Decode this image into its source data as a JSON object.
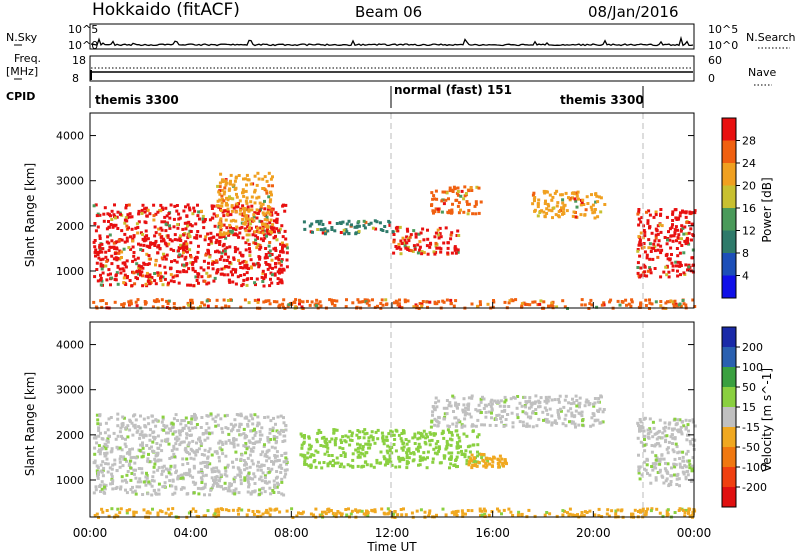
{
  "header": {
    "station": "Hokkaido (fitACF)",
    "beam": "Beam 06",
    "date": "08/Jan/2016"
  },
  "nsky_panel": {
    "left_label": "N.Sky",
    "right_label": "N.Search",
    "left_ticks": [
      "10^5",
      "10^0"
    ],
    "right_ticks": [
      "10^5",
      "10^0"
    ]
  },
  "freq_panel": {
    "left_label_line1": "Freq.",
    "left_label_line2": "[MHz]",
    "right_label": "Nave",
    "left_ticks": [
      "18",
      "8"
    ],
    "right_ticks": [
      "60",
      "0"
    ],
    "cpid_label": "CPID"
  },
  "cpid_modes": [
    "themis 3300",
    "normal (fast) 151",
    "themis 3300"
  ],
  "time_axis": {
    "label": "Time UT",
    "ticks": [
      "00:00",
      "04:00",
      "08:00",
      "12:00",
      "16:00",
      "20:00",
      "00:00"
    ]
  },
  "colors": {
    "power_scale": [
      "#1010e8",
      "#1c4fb8",
      "#2e7a6a",
      "#4a9a5a",
      "#c8c030",
      "#f0a020",
      "#f06010",
      "#e81010"
    ],
    "velocity_scale": [
      "#1a2aa8",
      "#2a60b0",
      "#3aa040",
      "#8ad040",
      "#c0c0c0",
      "#f0a820",
      "#f07810",
      "#f04010",
      "#e01010"
    ]
  },
  "chart_data": [
    {
      "type": "heatmap",
      "name": "power",
      "title": "",
      "xlabel": "Time UT",
      "ylabel": "Slant Range [km]",
      "xlim": [
        0,
        24
      ],
      "ylim": [
        180,
        4500
      ],
      "yticks": [
        1000,
        2000,
        3000,
        4000
      ],
      "colorbar": {
        "label": "Power [dB]",
        "ticks": [
          "4",
          "8",
          "12",
          "16",
          "20",
          "24",
          "28"
        ],
        "range": [
          0,
          32
        ]
      },
      "echo_regions": [
        {
          "time": [
            0.1,
            7.8
          ],
          "range": [
            700,
            2500
          ],
          "value": "28"
        },
        {
          "time": [
            5.0,
            7.2
          ],
          "range": [
            1800,
            3200
          ],
          "value": "20"
        },
        {
          "time": [
            8.3,
            12.0
          ],
          "range": [
            1850,
            2150
          ],
          "value": "8"
        },
        {
          "time": [
            12.0,
            14.7
          ],
          "range": [
            1400,
            2000
          ],
          "value": "28"
        },
        {
          "time": [
            13.5,
            15.5
          ],
          "range": [
            2300,
            2900
          ],
          "value": "24"
        },
        {
          "time": [
            17.5,
            20.4
          ],
          "range": [
            2200,
            2800
          ],
          "value": "20"
        },
        {
          "time": [
            21.7,
            24.0
          ],
          "range": [
            900,
            2400
          ],
          "value": "28"
        },
        {
          "time": [
            0.0,
            24.0
          ],
          "range": [
            200,
            400
          ],
          "value": "24"
        }
      ]
    },
    {
      "type": "heatmap",
      "name": "velocity",
      "title": "",
      "xlabel": "Time UT",
      "ylabel": "Slant Range [km]",
      "xlim": [
        0,
        24
      ],
      "ylim": [
        180,
        4500
      ],
      "yticks": [
        1000,
        2000,
        3000,
        4000
      ],
      "colorbar": {
        "label": "Velocity [m s^-1]",
        "ticks": [
          "200",
          "100",
          "50",
          "15",
          "-15",
          "-50",
          "-100",
          "-200"
        ],
        "range": [
          -250,
          250
        ]
      },
      "echo_regions": [
        {
          "time": [
            0.1,
            7.8
          ],
          "range": [
            700,
            2500
          ],
          "value": "-15 to 15"
        },
        {
          "time": [
            8.3,
            15.5
          ],
          "range": [
            1300,
            2150
          ],
          "value": "15 to 50"
        },
        {
          "time": [
            15.0,
            16.5
          ],
          "range": [
            1300,
            1600
          ],
          "value": "-50"
        },
        {
          "time": [
            13.5,
            20.4
          ],
          "range": [
            2200,
            2900
          ],
          "value": "-15 to 15"
        },
        {
          "time": [
            21.7,
            24.0
          ],
          "range": [
            900,
            2400
          ],
          "value": "-15 to 15"
        },
        {
          "time": [
            0.0,
            24.0
          ],
          "range": [
            200,
            400
          ],
          "value": "-50"
        }
      ]
    }
  ]
}
